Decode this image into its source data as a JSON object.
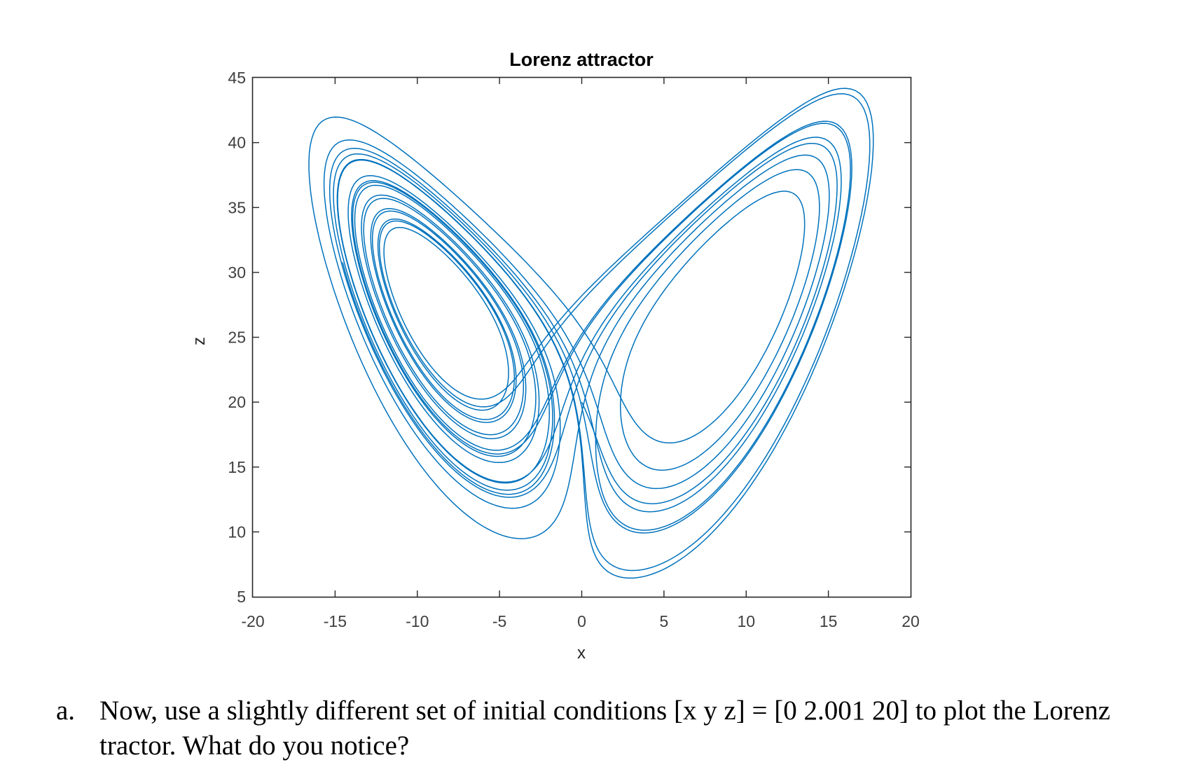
{
  "chart_data": {
    "type": "line",
    "title": "Lorenz attractor",
    "xlabel": "x",
    "ylabel": "z",
    "xlim": [
      -20,
      20
    ],
    "ylim": [
      5,
      45
    ],
    "xticks": [
      -20,
      -15,
      -10,
      -5,
      0,
      5,
      10,
      15,
      20
    ],
    "yticks": [
      5,
      10,
      15,
      20,
      25,
      30,
      35,
      40,
      45
    ],
    "xtick_labels": [
      "-20",
      "-15",
      "-10",
      "-5",
      "0",
      "5",
      "10",
      "15",
      "20"
    ],
    "ytick_labels": [
      "5",
      "10",
      "15",
      "20",
      "25",
      "30",
      "35",
      "40",
      "45"
    ],
    "grid": false,
    "legend": "none",
    "series": [
      {
        "name": "trajectory (x vs z)",
        "color": "#0072BD",
        "generator": "lorenz",
        "params": {
          "sigma": 10,
          "rho": 28,
          "beta": 2.6667
        },
        "initial_conditions": {
          "x": 0,
          "y": 2,
          "z": 20
        },
        "t_span": [
          0,
          20
        ]
      }
    ]
  },
  "question": {
    "marker": "a.",
    "text": "Now, use a slightly different set of initial conditions [x y z] = [0 2.001 20] to plot the Lorenz tractor. What do you notice?"
  }
}
